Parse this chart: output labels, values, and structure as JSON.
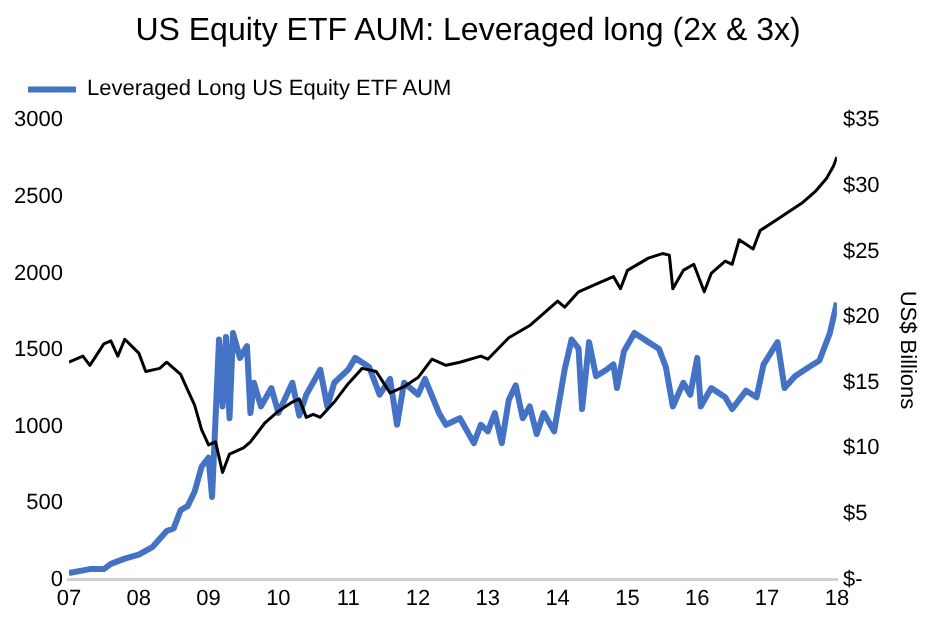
{
  "chart_data": {
    "type": "line",
    "title": "US Equity ETF AUM: Leveraged long (2x & 3x)",
    "y2label": "US$ Billions",
    "xlim": [
      2007,
      2018
    ],
    "xticks": [
      {
        "value": 2007,
        "label": "07"
      },
      {
        "value": 2008,
        "label": "08"
      },
      {
        "value": 2009,
        "label": "09"
      },
      {
        "value": 2010,
        "label": "10"
      },
      {
        "value": 2011,
        "label": "11"
      },
      {
        "value": 2012,
        "label": "12"
      },
      {
        "value": 2013,
        "label": "13"
      },
      {
        "value": 2014,
        "label": "14"
      },
      {
        "value": 2015,
        "label": "15"
      },
      {
        "value": 2016,
        "label": "16"
      },
      {
        "value": 2017,
        "label": "17"
      },
      {
        "value": 2018,
        "label": "18"
      }
    ],
    "ylim": [
      0,
      3000
    ],
    "yticks": [
      0,
      500,
      1000,
      1500,
      2000,
      2500,
      3000
    ],
    "y2lim": [
      0,
      35
    ],
    "y2ticks": [
      {
        "value": 0,
        "label": "$-"
      },
      {
        "value": 5,
        "label": "$5"
      },
      {
        "value": 10,
        "label": "$10"
      },
      {
        "value": 15,
        "label": "$15"
      },
      {
        "value": 20,
        "label": "$20"
      },
      {
        "value": 25,
        "label": "$25"
      },
      {
        "value": 30,
        "label": "$30"
      },
      {
        "value": 35,
        "label": "$35"
      }
    ],
    "grid": false,
    "legend": "top left",
    "marker": "none",
    "line_style": "solid",
    "series": [
      {
        "color": "#000000",
        "x": [
          2007.0,
          2007.2,
          2007.3,
          2007.5,
          2007.6,
          2007.7,
          2007.8,
          2008.0,
          2008.1,
          2008.3,
          2008.4,
          2008.6,
          2008.7,
          2008.8,
          2008.9,
          2009.0,
          2009.1,
          2009.2,
          2009.3,
          2009.5,
          2009.6,
          2009.8,
          2010.0,
          2010.2,
          2010.3,
          2010.4,
          2010.5,
          2010.6,
          2010.8,
          2011.0,
          2011.2,
          2011.4,
          2011.6,
          2011.8,
          2012.0,
          2012.2,
          2012.4,
          2012.6,
          2012.9,
          2013.0,
          2013.3,
          2013.6,
          2013.8,
          2014.0,
          2014.1,
          2014.3,
          2014.6,
          2014.8,
          2014.9,
          2015.0,
          2015.3,
          2015.5,
          2015.6,
          2015.65,
          2015.8,
          2015.95,
          2016.1,
          2016.2,
          2016.4,
          2016.5,
          2016.6,
          2016.8,
          2016.9,
          2017.1,
          2017.3,
          2017.5,
          2017.7,
          2017.85,
          2017.95,
          2018.0
        ],
        "values": [
          1420,
          1460,
          1400,
          1540,
          1560,
          1460,
          1570,
          1480,
          1360,
          1380,
          1420,
          1340,
          1240,
          1140,
          980,
          880,
          900,
          700,
          820,
          860,
          900,
          1020,
          1100,
          1160,
          1180,
          1060,
          1080,
          1060,
          1160,
          1280,
          1380,
          1360,
          1220,
          1260,
          1320,
          1440,
          1400,
          1420,
          1460,
          1440,
          1580,
          1660,
          1740,
          1820,
          1780,
          1880,
          1940,
          1980,
          1900,
          2020,
          2100,
          2130,
          2120,
          1900,
          2020,
          2060,
          1880,
          2000,
          2080,
          2060,
          2220,
          2160,
          2280,
          2340,
          2400,
          2460,
          2540,
          2620,
          2700,
          2760
        ]
      },
      {
        "name": "Leveraged Long US Equity ETF AUM",
        "color": "#4472c4",
        "axis": "y2",
        "x": [
          2007.0,
          2007.3,
          2007.5,
          2007.6,
          2007.8,
          2008.0,
          2008.2,
          2008.4,
          2008.5,
          2008.6,
          2008.7,
          2008.8,
          2008.9,
          2009.0,
          2009.05,
          2009.15,
          2009.2,
          2009.25,
          2009.3,
          2009.35,
          2009.45,
          2009.55,
          2009.6,
          2009.65,
          2009.75,
          2009.9,
          2010.0,
          2010.2,
          2010.3,
          2010.4,
          2010.6,
          2010.7,
          2010.8,
          2011.0,
          2011.1,
          2011.3,
          2011.45,
          2011.6,
          2011.7,
          2011.8,
          2012.0,
          2012.1,
          2012.3,
          2012.4,
          2012.6,
          2012.8,
          2012.9,
          2013.0,
          2013.1,
          2013.2,
          2013.3,
          2013.4,
          2013.5,
          2013.6,
          2013.7,
          2013.8,
          2013.95,
          2014.1,
          2014.2,
          2014.3,
          2014.35,
          2014.45,
          2014.55,
          2014.7,
          2014.8,
          2014.85,
          2014.95,
          2015.1,
          2015.3,
          2015.45,
          2015.55,
          2015.65,
          2015.8,
          2015.9,
          2016.0,
          2016.05,
          2016.2,
          2016.4,
          2016.5,
          2016.7,
          2016.85,
          2016.95,
          2017.15,
          2017.25,
          2017.4,
          2017.6,
          2017.75,
          2017.9,
          2018.0
        ],
        "values": [
          0.5,
          0.8,
          0.8,
          1.2,
          1.6,
          1.9,
          2.5,
          3.7,
          3.9,
          5.3,
          5.6,
          6.7,
          8.6,
          9.3,
          6.3,
          18.3,
          13.2,
          18.5,
          12.3,
          18.8,
          16.9,
          17.8,
          12.7,
          15.0,
          13.2,
          14.6,
          12.7,
          15.0,
          12.5,
          14.1,
          16.0,
          13.2,
          15.0,
          16.0,
          16.9,
          16.2,
          14.1,
          15.3,
          11.8,
          15.0,
          14.1,
          15.3,
          12.7,
          11.8,
          12.3,
          10.4,
          11.8,
          11.3,
          12.7,
          10.4,
          13.7,
          14.8,
          12.3,
          13.2,
          11.1,
          12.7,
          11.3,
          16.0,
          18.3,
          17.6,
          13.0,
          18.1,
          15.5,
          16.0,
          16.4,
          14.6,
          17.4,
          18.8,
          18.1,
          17.6,
          16.2,
          13.2,
          15.0,
          14.1,
          16.9,
          13.2,
          14.6,
          13.9,
          13.0,
          14.4,
          13.9,
          16.4,
          18.1,
          14.6,
          15.5,
          16.2,
          16.7,
          18.8,
          21.1
        ]
      }
    ]
  }
}
